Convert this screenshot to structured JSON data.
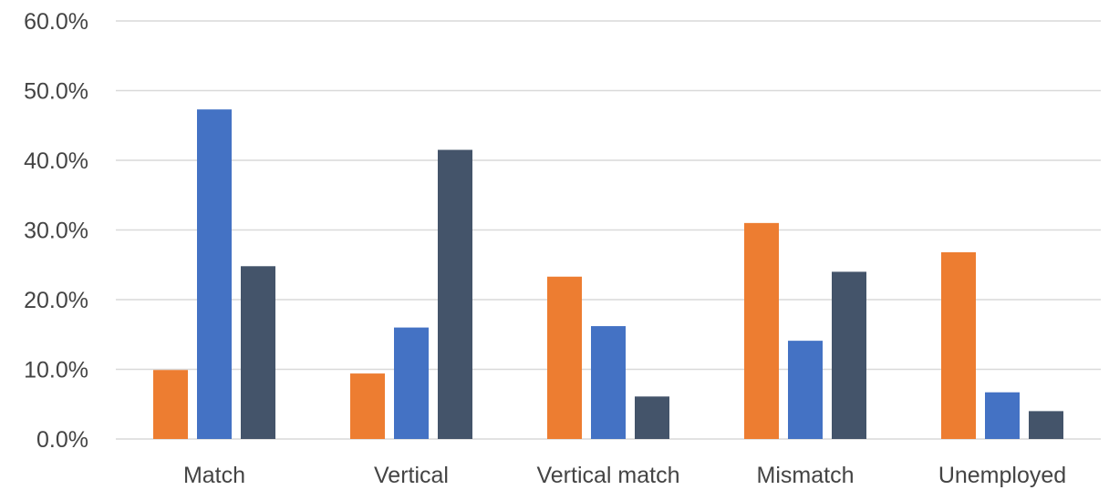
{
  "chart_data": {
    "type": "bar",
    "categories": [
      "Match",
      "Vertical",
      "Vertical match",
      "Mismatch",
      "Unemployed"
    ],
    "series": [
      {
        "color": "#ed7d31",
        "values": [
          9.9,
          9.4,
          23.3,
          31.0,
          26.8
        ]
      },
      {
        "color": "#4472c4",
        "values": [
          47.3,
          16.0,
          16.2,
          14.1,
          6.7
        ]
      },
      {
        "color": "#44546a",
        "values": [
          24.8,
          41.5,
          6.1,
          24.0,
          4.0
        ]
      }
    ],
    "yticks": [
      "0.0%",
      "10.0%",
      "20.0%",
      "30.0%",
      "40.0%",
      "50.0%",
      "60.0%"
    ],
    "ylim": [
      0,
      60
    ],
    "grid": true
  }
}
